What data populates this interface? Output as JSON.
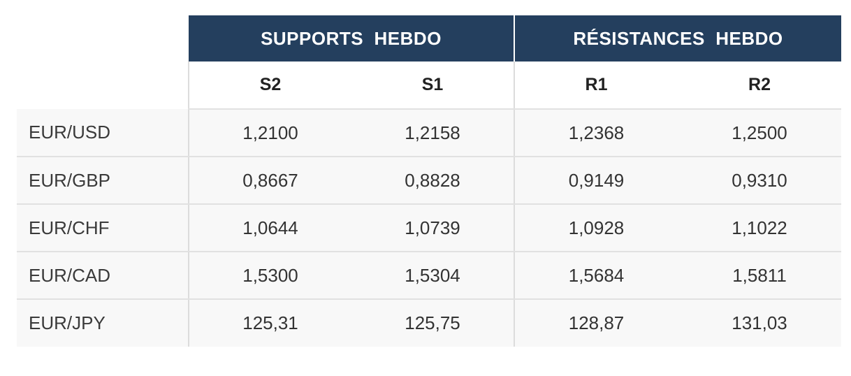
{
  "table": {
    "group_headers": [
      "SUPPORTS  HEBDO",
      "RÉSISTANCES  HEBDO"
    ],
    "column_headers": [
      "S2",
      "S1",
      "R1",
      "R2"
    ],
    "rows": [
      {
        "pair": "EUR/USD",
        "values": [
          "1,2100",
          "1,2158",
          "1,2368",
          "1,2500"
        ]
      },
      {
        "pair": "EUR/GBP",
        "values": [
          "0,8667",
          "0,8828",
          "0,9149",
          "0,9310"
        ]
      },
      {
        "pair": "EUR/CHF",
        "values": [
          "1,0644",
          "1,0739",
          "1,0928",
          "1,1022"
        ]
      },
      {
        "pair": "EUR/CAD",
        "values": [
          "1,5300",
          "1,5304",
          "1,5684",
          "1,5811"
        ]
      },
      {
        "pair": "EUR/JPY",
        "values": [
          "125,31",
          "125,75",
          "128,87",
          "131,03"
        ]
      }
    ]
  },
  "colors": {
    "header_bg": "#243f5e",
    "header_text": "#ffffff",
    "row_bg": "#f8f8f8",
    "divider": "#e1e1e1"
  }
}
